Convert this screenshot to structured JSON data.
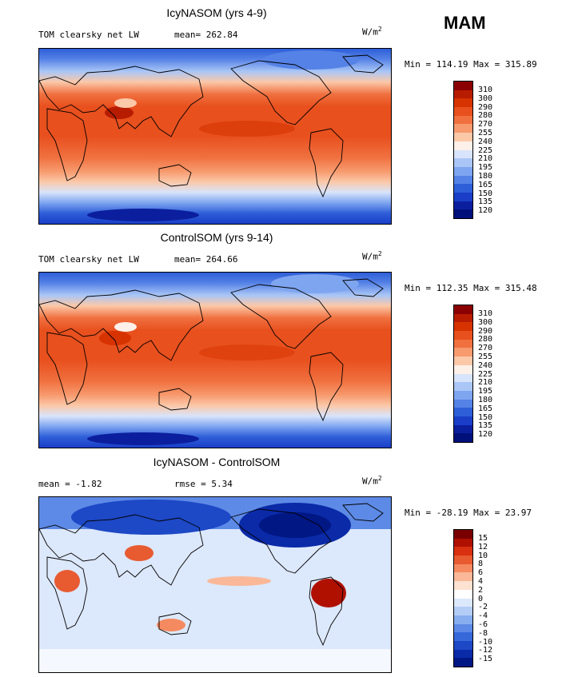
{
  "season": "MAM",
  "units": "W/m",
  "units_sup": "2",
  "panels": [
    {
      "title": "IcyNASOM (yrs 4-9)",
      "var_label": "TOM clearsky net LW",
      "stat": "mean= 262.84",
      "minmax": "Min = 114.19 Max = 315.89",
      "colorbar_labels": [
        "310",
        "300",
        "290",
        "280",
        "270",
        "255",
        "240",
        "225",
        "210",
        "195",
        "180",
        "165",
        "150",
        "135",
        "120"
      ]
    },
    {
      "title": "ControlSOM (yrs 9-14)",
      "var_label": "TOM clearsky net LW",
      "stat": "mean= 264.66",
      "minmax": "Min = 112.35 Max = 315.48",
      "colorbar_labels": [
        "310",
        "300",
        "290",
        "280",
        "270",
        "255",
        "240",
        "225",
        "210",
        "195",
        "180",
        "165",
        "150",
        "135",
        "120"
      ]
    },
    {
      "title": "IcyNASOM - ControlSOM",
      "var_label": "mean =  -1.82",
      "stat": "rmse =   5.34",
      "minmax": "Min = -28.19 Max =  23.97",
      "colorbar_labels": [
        "15",
        "12",
        "10",
        "8",
        "6",
        "4",
        "2",
        "0",
        "-2",
        "-4",
        "-6",
        "-8",
        "-10",
        "-12",
        "-15"
      ]
    }
  ],
  "colors": {
    "abs_scale": [
      "#8b0000",
      "#b81c00",
      "#d63300",
      "#e8501e",
      "#f0703f",
      "#f79a6e",
      "#fbc8a8",
      "#fdf0e8",
      "#d8e4fb",
      "#aac6f6",
      "#7ea5f0",
      "#5582e6",
      "#2e5ed8",
      "#1a3ec8",
      "#0b1f9e",
      "#00107a"
    ],
    "diff_scale": [
      "#7a0000",
      "#b01000",
      "#d83010",
      "#e85a30",
      "#f58a60",
      "#fab898",
      "#fde2d2",
      "#ffffff",
      "#dce8fb",
      "#b4cdf7",
      "#88aef0",
      "#5d8ae6",
      "#3768da",
      "#1d48c6",
      "#0a2aa8",
      "#001784"
    ]
  }
}
